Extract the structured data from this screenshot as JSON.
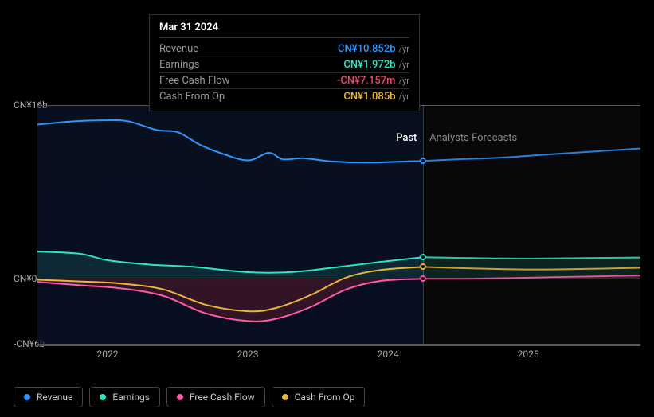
{
  "tooltip": {
    "date": "Mar 31 2024",
    "unit": "/yr",
    "rows": [
      {
        "label": "Revenue",
        "value": "CN¥10.852b",
        "color": "#2f95ff"
      },
      {
        "label": "Earnings",
        "value": "CN¥1.972b",
        "color": "#2ee6c6"
      },
      {
        "label": "Free Cash Flow",
        "value": "-CN¥7.157m",
        "color": "#e34b6e"
      },
      {
        "label": "Cash From Op",
        "value": "CN¥1.085b",
        "color": "#e8b63b"
      }
    ]
  },
  "chart": {
    "background_color": "#000000",
    "past_gradient_top": "rgba(20,40,80,0.4)",
    "past_gradient_bottom": "rgba(10,20,45,0.7)",
    "forecast_bg": "rgba(25,25,25,0.5)",
    "gridline_color": "#555555",
    "y_axis": {
      "min": -6,
      "max": 16,
      "ticks": [
        {
          "value": 16,
          "label": "CN¥16b"
        },
        {
          "value": 0,
          "label": "CN¥0"
        },
        {
          "value": -6,
          "label": "-CN¥6b"
        }
      ],
      "label_color": "#aaaaaa",
      "label_fontsize": 12
    },
    "x_axis": {
      "start": 2021.5,
      "end": 2025.8,
      "divider": 2024.25,
      "ticks": [
        {
          "value": 2022,
          "label": "2022"
        },
        {
          "value": 2023,
          "label": "2023"
        },
        {
          "value": 2024,
          "label": "2024"
        },
        {
          "value": 2025,
          "label": "2025"
        }
      ],
      "label_color": "#aaaaaa",
      "label_fontsize": 12
    },
    "section_labels": {
      "past": "Past",
      "forecast": "Analysts Forecasts",
      "past_color": "#ffffff",
      "forecast_color": "#888888"
    },
    "line_width": 2,
    "marker_radius": 3.5,
    "marker_border": 2,
    "series": [
      {
        "key": "revenue",
        "label": "Revenue",
        "color": "#2f95ff",
        "fill": "none",
        "data": [
          [
            2021.5,
            14.2
          ],
          [
            2021.75,
            14.5
          ],
          [
            2022.0,
            14.6
          ],
          [
            2022.15,
            14.5
          ],
          [
            2022.35,
            13.7
          ],
          [
            2022.5,
            13.5
          ],
          [
            2022.65,
            12.4
          ],
          [
            2022.8,
            11.6
          ],
          [
            2023.0,
            10.9
          ],
          [
            2023.15,
            11.6
          ],
          [
            2023.25,
            11.0
          ],
          [
            2023.4,
            11.1
          ],
          [
            2023.6,
            10.8
          ],
          [
            2023.85,
            10.7
          ],
          [
            2024.25,
            10.852
          ],
          [
            2024.5,
            11.0
          ],
          [
            2024.8,
            11.15
          ],
          [
            2025.2,
            11.5
          ],
          [
            2025.8,
            12.0
          ]
        ]
      },
      {
        "key": "earnings",
        "label": "Earnings",
        "color": "#2ee6c6",
        "fill": "rgba(46,230,198,0.12)",
        "fill_to": 0,
        "data": [
          [
            2021.5,
            2.5
          ],
          [
            2021.8,
            2.3
          ],
          [
            2022.0,
            1.7
          ],
          [
            2022.3,
            1.3
          ],
          [
            2022.6,
            1.1
          ],
          [
            2023.0,
            0.6
          ],
          [
            2023.3,
            0.6
          ],
          [
            2023.6,
            1.0
          ],
          [
            2023.95,
            1.55
          ],
          [
            2024.25,
            1.972
          ],
          [
            2024.6,
            1.9
          ],
          [
            2025.0,
            1.85
          ],
          [
            2025.4,
            1.9
          ],
          [
            2025.8,
            1.95
          ]
        ]
      },
      {
        "key": "fcf",
        "label": "Free Cash Flow",
        "color": "#ff5aa8",
        "fill": "rgba(180,40,60,0.25)",
        "fill_to": 0,
        "data": [
          [
            2021.5,
            -0.3
          ],
          [
            2021.8,
            -0.6
          ],
          [
            2022.1,
            -0.9
          ],
          [
            2022.4,
            -1.6
          ],
          [
            2022.7,
            -3.2
          ],
          [
            2023.0,
            -3.9
          ],
          [
            2023.2,
            -3.7
          ],
          [
            2023.45,
            -2.6
          ],
          [
            2023.7,
            -1.0
          ],
          [
            2023.95,
            -0.2
          ],
          [
            2024.25,
            -0.007
          ],
          [
            2024.6,
            0.0
          ],
          [
            2025.0,
            0.1
          ],
          [
            2025.4,
            0.2
          ],
          [
            2025.8,
            0.3
          ]
        ]
      },
      {
        "key": "cfo",
        "label": "Cash From Op",
        "color": "#e8b63b",
        "fill": "none",
        "data": [
          [
            2021.5,
            -0.1
          ],
          [
            2021.8,
            -0.25
          ],
          [
            2022.1,
            -0.45
          ],
          [
            2022.4,
            -1.0
          ],
          [
            2022.7,
            -2.4
          ],
          [
            2023.0,
            -3.0
          ],
          [
            2023.2,
            -2.7
          ],
          [
            2023.45,
            -1.5
          ],
          [
            2023.7,
            0.1
          ],
          [
            2023.95,
            0.8
          ],
          [
            2024.25,
            1.085
          ],
          [
            2024.6,
            0.95
          ],
          [
            2025.0,
            0.85
          ],
          [
            2025.4,
            0.9
          ],
          [
            2025.8,
            1.0
          ]
        ]
      }
    ]
  },
  "legend": {
    "items": [
      {
        "label": "Revenue",
        "color": "#2f95ff"
      },
      {
        "label": "Earnings",
        "color": "#2ee6c6"
      },
      {
        "label": "Free Cash Flow",
        "color": "#ff5aa8"
      },
      {
        "label": "Cash From Op",
        "color": "#e8b63b"
      }
    ],
    "fontsize": 12,
    "text_color": "#cccccc",
    "border_color": "#444444"
  }
}
